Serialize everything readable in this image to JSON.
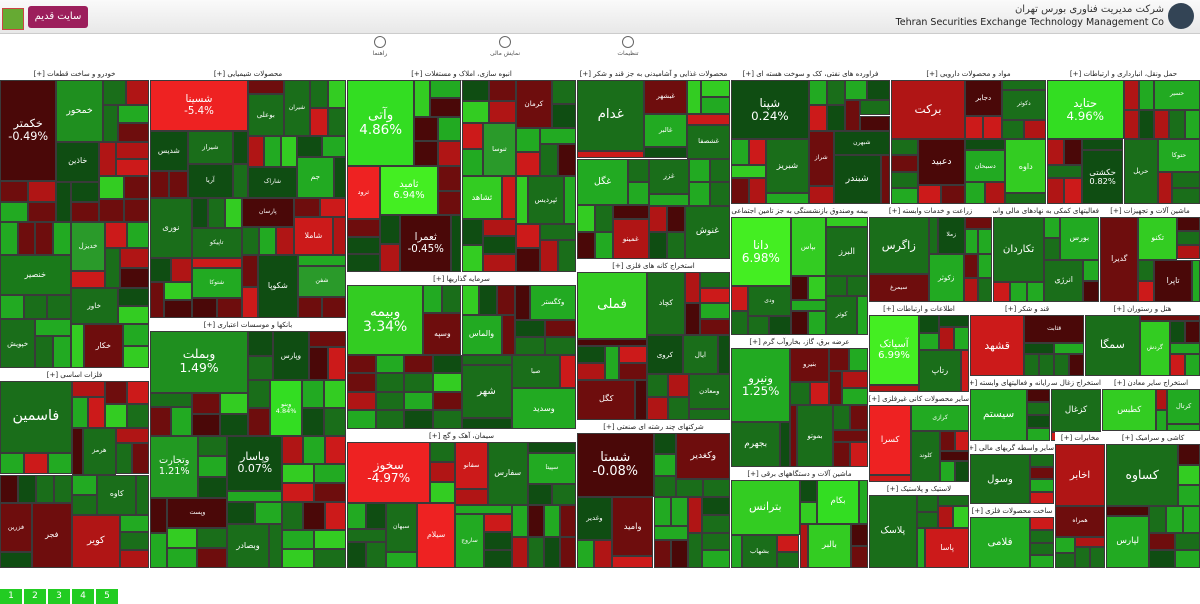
{
  "header": {
    "old_site": "سایت قدیم",
    "company_fa": "شرکت مدیریت فناوری بورس تهران",
    "company_en": "Tehran Securities Exchange Technology Management Co"
  },
  "toolbar": [
    "راهنما",
    "نمایش مالی",
    "تنظیمات"
  ],
  "sectors": [
    {
      "title": "خودرو و ساخت قطعات [+]",
      "tiles": [
        {
          "label": "خکمتر",
          "change": "-0.49%",
          "color": "#4a0808"
        },
        {
          "label": "خمحور",
          "color": "#1f8f1f"
        },
        {
          "label": "خنصیر",
          "color": "#1a7a1a"
        },
        {
          "label": "خدیزل",
          "color": "#2a9a2a"
        },
        {
          "label": "خاور",
          "color": "#1a6e1a"
        },
        {
          "label": "خپویش",
          "color": "#1a6e1a"
        },
        {
          "label": "خکار",
          "color": "#6e0d0d"
        },
        {
          "label": "خاذین",
          "color": "#0f4d12"
        }
      ]
    },
    {
      "title": "محصولات شیمیایی [+]",
      "tiles": [
        {
          "label": "شسینا",
          "change": "-5.4%",
          "color": "#ee2222"
        },
        {
          "label": "شکوپا",
          "color": "#0f4d12"
        },
        {
          "label": "نوری",
          "color": "#1a6e1a"
        },
        {
          "label": "شاراک",
          "color": "#0f4d12"
        },
        {
          "label": "شاملا",
          "color": "#cc1a1a"
        },
        {
          "label": "پارسان",
          "color": "#4a0808"
        },
        {
          "label": "شیراز",
          "color": "#1a6e1a"
        },
        {
          "label": "تاپیکو",
          "color": "#1a6e1a"
        },
        {
          "label": "بوعلی",
          "color": "#1a6e1a"
        },
        {
          "label": "شتوکا",
          "color": "#22aa22"
        },
        {
          "label": "شدیس",
          "color": "#0f4d12"
        },
        {
          "label": "شیران",
          "color": "#1a6e1a"
        },
        {
          "label": "جم",
          "color": "#22aa22"
        },
        {
          "label": "آریا",
          "color": "#0f4d12"
        },
        {
          "label": "شفن",
          "color": "#2a9a2a"
        }
      ]
    },
    {
      "title": "بانکها و موسسات اعتباری [+]",
      "tiles": [
        {
          "label": "وبملت",
          "change": "1.49%",
          "color": "#1f8f1f"
        },
        {
          "label": "وتجارت",
          "change": "1.21%",
          "color": "#229922"
        },
        {
          "label": "وپاسار",
          "change": "0.07%",
          "color": "#0f4d12"
        },
        {
          "label": "وبنو",
          "change": "4.84%",
          "color": "#33dd22"
        },
        {
          "label": "وبصادر",
          "color": "#1a6e1a"
        },
        {
          "label": "وپست",
          "color": "#4a0808"
        },
        {
          "label": "وپارس",
          "color": "#0f4d12"
        }
      ]
    },
    {
      "title": "انبوه سازی، املاک و مستغلات [+]",
      "tiles": [
        {
          "label": "وآتی",
          "change": "4.86%",
          "color": "#33dd22"
        },
        {
          "label": "ثامید",
          "change": "6.94%",
          "color": "#44ee22"
        },
        {
          "label": "ثعمرا",
          "change": "-0.45%",
          "color": "#4a0808"
        },
        {
          "label": "کرمان",
          "color": "#6e0d0d"
        },
        {
          "label": "ثنوسا",
          "color": "#2a9a2a"
        },
        {
          "label": "ثشاهد",
          "color": "#33cc22"
        },
        {
          "label": "ثپردیس",
          "color": "#1a6e1a"
        },
        {
          "label": "ثرود",
          "color": "#ee2222"
        }
      ]
    },
    {
      "title": "سرمایه گذاریها [+]",
      "tiles": [
        {
          "label": "وبیمه",
          "change": "3.34%",
          "color": "#33cc22"
        },
        {
          "label": "وسدید",
          "color": "#22aa22"
        },
        {
          "label": "شهر",
          "color": "#1a6e1a"
        },
        {
          "label": "وکگستر",
          "color": "#22aa22"
        },
        {
          "label": "والماس",
          "color": "#22aa22"
        },
        {
          "label": "صبا",
          "color": "#1a6e1a"
        },
        {
          "label": "وسپه",
          "color": "#6e0d0d"
        }
      ]
    },
    {
      "title": "سیمان، آهک و گچ [+]",
      "tiles": [
        {
          "label": "سخوز",
          "change": "-4.97%",
          "color": "#ee2222"
        },
        {
          "label": "سیلام",
          "color": "#ee2222"
        },
        {
          "label": "سفارس",
          "color": "#1a6e1a"
        },
        {
          "label": "سبهان",
          "color": "#1a6e1a"
        },
        {
          "label": "ساروج",
          "color": "#22aa22"
        },
        {
          "label": "سفانو",
          "color": "#cc1a1a"
        },
        {
          "label": "سپیتا",
          "color": "#22aa22"
        }
      ]
    },
    {
      "title": "محصولات غذایی و آشامیدنی به جز قند و شکر [+]",
      "tiles": [
        {
          "label": "غدام",
          "color": "#1a6e1a"
        },
        {
          "label": "غنوش",
          "color": "#1a6e1a"
        },
        {
          "label": "غگل",
          "color": "#22aa22"
        },
        {
          "label": "غزر",
          "color": "#1a6e1a"
        },
        {
          "label": "غالبر",
          "color": "#22aa22"
        },
        {
          "label": "غبشهر",
          "color": "#6e0d0d"
        },
        {
          "label": "غمینو",
          "color": "#b01515"
        },
        {
          "label": "غشصفا",
          "color": "#1a6e1a"
        }
      ]
    },
    {
      "title": "استخراج کانه های فلزی [+]",
      "tiles": [
        {
          "label": "فملی",
          "color": "#33cc22"
        },
        {
          "label": "کچاد",
          "color": "#1a6e1a"
        },
        {
          "label": "کگل",
          "color": "#6e0d0d"
        },
        {
          "label": "ومعادن",
          "color": "#1a6e1a"
        },
        {
          "label": "کروی",
          "color": "#0f4d12"
        },
        {
          "label": "ایال",
          "color": "#1a6e1a"
        }
      ]
    },
    {
      "title": "شرکتهای چند رشته ای صنعتی [+]",
      "tiles": [
        {
          "label": "شستا",
          "change": "-0.08%",
          "color": "#4a0808"
        },
        {
          "label": "وکغدیر",
          "color": "#6e0d0d"
        },
        {
          "label": "وامید",
          "color": "#6e0d0d"
        },
        {
          "label": "وغدیر",
          "color": "#0f4d12"
        }
      ]
    },
    {
      "title": "فراورده های نفتی، کک و سوخت هسته ای [+]",
      "tiles": [
        {
          "label": "شپنا",
          "change": "0.24%",
          "color": "#0f4d12"
        },
        {
          "label": "شبندر",
          "color": "#0f4d12"
        },
        {
          "label": "شبریز",
          "color": "#1a6e1a"
        },
        {
          "label": "شراز",
          "color": "#6e0d0d"
        },
        {
          "label": "شبهرن",
          "color": "#0f4d12"
        }
      ]
    },
    {
      "title": "بیمه وصندوق بازنشستگی به جز تامین اجتماعی [+]",
      "tiles": [
        {
          "label": "دانا",
          "change": "6.98%",
          "color": "#44ee22"
        },
        {
          "label": "البرز",
          "color": "#1a6e1a"
        },
        {
          "label": "بپاس",
          "color": "#33cc22"
        },
        {
          "label": "کوثر",
          "color": "#1a6e1a"
        },
        {
          "label": "ودی",
          "color": "#1a6e1a"
        }
      ]
    },
    {
      "title": "عرضه برق، گاز، بخاروآب گرم [+]",
      "tiles": [
        {
          "label": "ونیرو",
          "change": "1.25%",
          "color": "#22aa22"
        },
        {
          "label": "بجهرم",
          "color": "#1a6e1a"
        },
        {
          "label": "بموتو",
          "color": "#1a6e1a"
        },
        {
          "label": "بنیرو",
          "color": "#6e0d0d"
        }
      ]
    },
    {
      "title": "ماشین آلات و دستگاههای برقی [+]",
      "tiles": [
        {
          "label": "بترانس",
          "color": "#33cc22"
        },
        {
          "label": "بالبر",
          "color": "#33cc22"
        },
        {
          "label": "بکام",
          "color": "#33dd22"
        },
        {
          "label": "بشهاب",
          "color": "#1a6e1a"
        }
      ]
    },
    {
      "title": "مواد و محصولات دارویی [+]",
      "tiles": [
        {
          "label": "برکت",
          "color": "#b01515"
        },
        {
          "label": "داوه",
          "color": "#33cc22"
        },
        {
          "label": "دعبید",
          "color": "#4a0808"
        },
        {
          "label": "دکوثر",
          "color": "#1a6e1a"
        },
        {
          "label": "دسبحان",
          "color": "#22aa22"
        },
        {
          "label": "دجابر",
          "color": "#4a0808"
        }
      ]
    },
    {
      "title": "حمل ونقل، انبارداری و ارتباطات [+]",
      "tiles": [
        {
          "label": "حتاید",
          "change": "4.96%",
          "color": "#33dd22"
        },
        {
          "label": "حکشتی",
          "change": "0.82%",
          "color": "#0f4d12"
        },
        {
          "label": "حریل",
          "color": "#1a6e1a"
        },
        {
          "label": "حسیر",
          "color": "#22aa22"
        },
        {
          "label": "حتوکا",
          "color": "#22aa22"
        }
      ]
    },
    {
      "title": "زراعت و خدمات وابسته [+]",
      "tiles": [
        {
          "label": "زاگرس",
          "color": "#1a6e1a"
        },
        {
          "label": "زکوثر",
          "color": "#22aa22"
        },
        {
          "label": "سیمرغ",
          "color": "#6e0d0d"
        },
        {
          "label": "زملا",
          "color": "#0f4d12"
        }
      ]
    },
    {
      "title": "فعالیتهای کمکی به نهادهای مالی واسط [+]",
      "tiles": [
        {
          "label": "تکاردان",
          "color": "#1a6e1a"
        },
        {
          "label": "انرژی",
          "color": "#1a6e1a"
        },
        {
          "label": "بورس",
          "color": "#22aa22"
        }
      ]
    },
    {
      "title": "ماشین آلات و تجهیزات [+]",
      "tiles": [
        {
          "label": "گدیرا",
          "color": "#6e0d0d"
        },
        {
          "label": "تاپرا",
          "color": "#4a0808"
        },
        {
          "label": "تکنو",
          "color": "#33cc22"
        }
      ]
    },
    {
      "title": "اطلاعات و ارتباطات [+]",
      "tiles": [
        {
          "label": "آسیاتک",
          "change": "6.99%",
          "color": "#44ee22"
        },
        {
          "label": "رتاپ",
          "color": "#1a6e1a"
        }
      ]
    },
    {
      "title": "سایر محصولات کانی غیرفلزی [+]",
      "tiles": [
        {
          "label": "کسرا",
          "color": "#ee2222"
        },
        {
          "label": "کلوند",
          "color": "#1a6e1a"
        },
        {
          "label": "کرازی",
          "color": "#22aa22"
        }
      ]
    },
    {
      "title": "لاستیک و پلاستیک [+]",
      "tiles": [
        {
          "label": "پلاسک",
          "color": "#1a6e1a"
        },
        {
          "label": "پاسا",
          "color": "#cc1a1a"
        }
      ]
    },
    {
      "title": "قند و شکر [+]",
      "tiles": [
        {
          "label": "قشهد",
          "color": "#cc1a1a"
        },
        {
          "label": "قثابت",
          "color": "#4a0808"
        }
      ]
    },
    {
      "title": "هتل و رستوران [+]",
      "tiles": [
        {
          "label": "سمگا",
          "color": "#1a6e1a"
        },
        {
          "label": "گردش",
          "color": "#33cc22"
        }
      ]
    },
    {
      "title": "رایانه و فعالیتهای وابسته [+]",
      "tiles": [
        {
          "label": "سیستم",
          "color": "#22aa22"
        }
      ]
    },
    {
      "title": "استخراج زغال سنگ [+]",
      "tiles": [
        {
          "label": "کزغال",
          "color": "#1a6e1a"
        }
      ]
    },
    {
      "title": "استخراج سایر معادن [+]",
      "tiles": [
        {
          "label": "کطبس",
          "color": "#33cc22"
        },
        {
          "label": "کرتال",
          "color": "#22aa22"
        }
      ]
    },
    {
      "title": "سایر واسطه گریهای مالی [+]",
      "tiles": [
        {
          "label": "وسول",
          "color": "#1a6e1a"
        }
      ]
    },
    {
      "title": "ساخت محصولات فلزی [+]",
      "tiles": [
        {
          "label": "فلامی",
          "color": "#22aa22"
        }
      ]
    },
    {
      "title": "مخابرات [+]",
      "tiles": [
        {
          "label": "اخابر",
          "color": "#b01515"
        },
        {
          "label": "همراه",
          "color": "#6e0d0d"
        }
      ]
    },
    {
      "title": "کاشی و سرامیک [+]",
      "tiles": [
        {
          "label": "کساوه",
          "color": "#1a6e1a"
        },
        {
          "label": "لپارس",
          "color": "#22aa22"
        }
      ]
    },
    {
      "title": "فلزات اساسی [+]",
      "tiles": [
        {
          "label": "فاسمین",
          "color": "#1a6e1a"
        },
        {
          "label": "فجر",
          "color": "#6e0d0d"
        },
        {
          "label": "کویر",
          "color": "#b01515"
        },
        {
          "label": "فزرین",
          "color": "#6e0d0d"
        },
        {
          "label": "هرمز",
          "color": "#1a6e1a"
        },
        {
          "label": "کاوه",
          "color": "#1a6e1a"
        }
      ]
    }
  ],
  "pagination": [
    1,
    2,
    3,
    4,
    5
  ]
}
